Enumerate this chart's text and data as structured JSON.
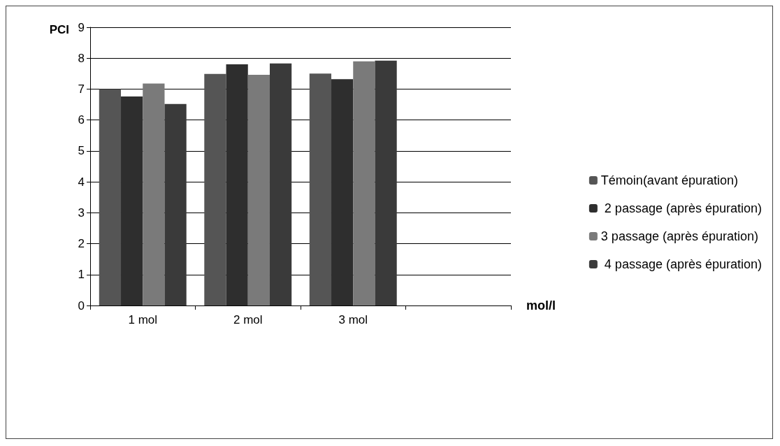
{
  "chart_data": {
    "type": "bar",
    "ylabel": "PCI",
    "xlabel": "mol/l",
    "categories": [
      "1 mol",
      "2 mol",
      "3 mol",
      null
    ],
    "series": [
      {
        "name": "Témoin(avant épuration)",
        "color": "#555555",
        "values": [
          7.0,
          7.49,
          7.5,
          null
        ]
      },
      {
        "name": " 2 passage (après épuration)",
        "color": "#2e2e2e",
        "values": [
          6.76,
          7.8,
          7.32,
          null
        ]
      },
      {
        "name": "3 passage (après épuration)",
        "color": "#7a7a7a",
        "values": [
          7.18,
          7.46,
          7.9,
          null
        ]
      },
      {
        "name": " 4 passage (après épuration)",
        "color": "#3a3a3a",
        "values": [
          6.52,
          7.83,
          7.92,
          null
        ]
      }
    ],
    "ylim": [
      0,
      9
    ],
    "yticks": [
      0,
      1,
      2,
      3,
      4,
      5,
      6,
      7,
      8,
      9
    ],
    "grid": "y",
    "legend": "right"
  }
}
